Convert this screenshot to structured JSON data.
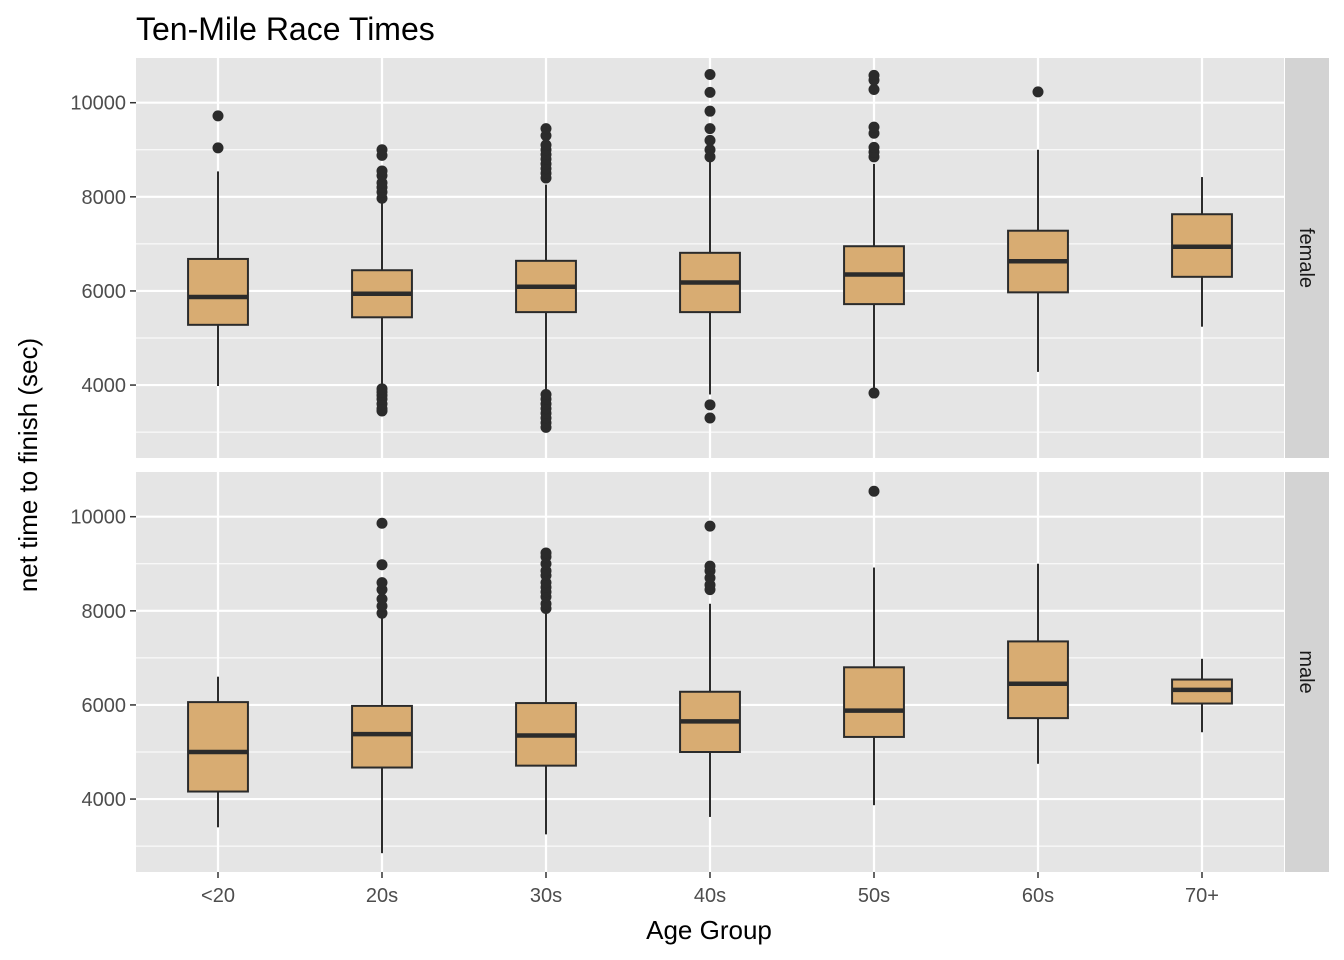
{
  "chart_data": {
    "type": "boxplot",
    "title": "Ten-Mile Race Times",
    "xlabel": "Age Group",
    "ylabel": "net time to finish (sec)",
    "categories": [
      "<20",
      "20s",
      "30s",
      "40s",
      "50s",
      "60s",
      "70+"
    ],
    "yticks": [
      4000,
      6000,
      8000,
      10000
    ],
    "ylim": [
      2450,
      10950
    ],
    "grid": true,
    "colors": {
      "box_fill": "#D8AC72",
      "box_stroke": "#2b2b2b",
      "panel_bg": "#E5E5E5",
      "strip_bg": "#D3D3D3",
      "grid": "#ffffff"
    },
    "facets": [
      {
        "name": "female",
        "boxes": [
          {
            "group": "<20",
            "lower_whisker": 3980,
            "q1": 5280,
            "median": 5870,
            "q3": 6680,
            "upper_whisker": 8540,
            "outliers": [
              9040,
              9720
            ]
          },
          {
            "group": "20s",
            "lower_whisker": 3960,
            "q1": 5440,
            "median": 5940,
            "q3": 6440,
            "upper_whisker": 7930,
            "outliers": [
              3450,
              3500,
              3600,
              3700,
              3780,
              3850,
              3920,
              7970,
              8100,
              8200,
              8300,
              8450,
              8550,
              8880,
              9000
            ]
          },
          {
            "group": "30s",
            "lower_whisker": 3880,
            "q1": 5550,
            "median": 6090,
            "q3": 6640,
            "upper_whisker": 8260,
            "outliers": [
              3100,
              3200,
              3300,
              3400,
              3500,
              3600,
              3700,
              3800,
              8400,
              8500,
              8600,
              8700,
              8800,
              8900,
              9000,
              9100,
              9300,
              9450
            ]
          },
          {
            "group": "40s",
            "lower_whisker": 3800,
            "q1": 5550,
            "median": 6180,
            "q3": 6810,
            "upper_whisker": 8750,
            "outliers": [
              3300,
              3580,
              8850,
              9000,
              9200,
              9450,
              9820,
              10220,
              10600
            ]
          },
          {
            "group": "50s",
            "lower_whisker": 3900,
            "q1": 5720,
            "median": 6350,
            "q3": 6950,
            "upper_whisker": 8700,
            "outliers": [
              3830,
              8850,
              8950,
              9050,
              9350,
              9480,
              10280,
              10480,
              10580
            ]
          },
          {
            "group": "60s",
            "lower_whisker": 4280,
            "q1": 5970,
            "median": 6630,
            "q3": 7280,
            "upper_whisker": 9000,
            "outliers": [
              10230
            ]
          },
          {
            "group": "70+",
            "lower_whisker": 5240,
            "q1": 6300,
            "median": 6940,
            "q3": 7630,
            "upper_whisker": 8420,
            "outliers": []
          }
        ]
      },
      {
        "name": "male",
        "boxes": [
          {
            "group": "<20",
            "lower_whisker": 3400,
            "q1": 4160,
            "median": 5000,
            "q3": 6060,
            "upper_whisker": 6600,
            "outliers": []
          },
          {
            "group": "20s",
            "lower_whisker": 2850,
            "q1": 4670,
            "median": 5380,
            "q3": 5980,
            "upper_whisker": 7850,
            "outliers": [
              7950,
              8100,
              8250,
              8450,
              8600,
              8980,
              9860
            ]
          },
          {
            "group": "30s",
            "lower_whisker": 3250,
            "q1": 4710,
            "median": 5350,
            "q3": 6040,
            "upper_whisker": 7950,
            "outliers": [
              8050,
              8150,
              8300,
              8400,
              8500,
              8600,
              8750,
              8850,
              9000,
              9150,
              9230
            ]
          },
          {
            "group": "40s",
            "lower_whisker": 3620,
            "q1": 5000,
            "median": 5650,
            "q3": 6280,
            "upper_whisker": 8150,
            "outliers": [
              8450,
              8550,
              8700,
              8850,
              8950,
              9800
            ]
          },
          {
            "group": "50s",
            "lower_whisker": 3870,
            "q1": 5320,
            "median": 5880,
            "q3": 6800,
            "upper_whisker": 8920,
            "outliers": [
              10540
            ]
          },
          {
            "group": "60s",
            "lower_whisker": 4750,
            "q1": 5720,
            "median": 6450,
            "q3": 7350,
            "upper_whisker": 9000,
            "outliers": []
          },
          {
            "group": "70+",
            "lower_whisker": 5420,
            "q1": 6030,
            "median": 6320,
            "q3": 6540,
            "upper_whisker": 6980,
            "outliers": []
          }
        ]
      }
    ]
  }
}
